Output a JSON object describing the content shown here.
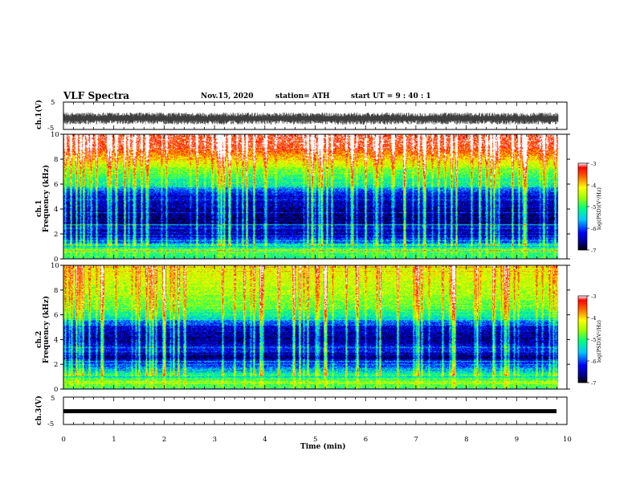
{
  "header": {
    "title": "VLF Spectra",
    "date": "Nov.15, 2020",
    "station": "station= ATH",
    "start": "start  UT =   9 : 40 : 1"
  },
  "chart_data": [
    {
      "type": "line",
      "panel": "ch1-waveform",
      "ylabel": "ch.1(V)",
      "ylim": [
        -5,
        5
      ],
      "yticks": [
        "5",
        "-5"
      ],
      "xlim": [
        0,
        10
      ],
      "series": [
        {
          "description_level": "noisy waveform centered near -1 V",
          "center": -1,
          "amplitude": 2.2,
          "x_end": 9.83
        }
      ]
    },
    {
      "type": "heatmap",
      "panel": "ch1-spectrogram",
      "ylabel": "ch.1\nFrequency (kHz)",
      "ylim": [
        0,
        10
      ],
      "yticks": [
        "0",
        "2",
        "4",
        "6",
        "8",
        "10"
      ],
      "xlim": [
        0,
        10
      ],
      "x_end": 9.83,
      "profile": [
        {
          "f": 0.0,
          "v": -5.4
        },
        {
          "f": 0.4,
          "v": -4.8
        },
        {
          "f": 0.8,
          "v": -5.1
        },
        {
          "f": 1.2,
          "v": -5.6
        },
        {
          "f": 1.6,
          "v": -6.1
        },
        {
          "f": 2.0,
          "v": -6.6
        },
        {
          "f": 2.4,
          "v": -6.2
        },
        {
          "f": 3.0,
          "v": -6.7
        },
        {
          "f": 4.0,
          "v": -6.6
        },
        {
          "f": 5.0,
          "v": -6.4
        },
        {
          "f": 5.6,
          "v": -5.8
        },
        {
          "f": 6.0,
          "v": -5.3
        },
        {
          "f": 7.0,
          "v": -4.8
        },
        {
          "f": 8.0,
          "v": -4.0
        },
        {
          "f": 9.0,
          "v": -3.4
        },
        {
          "f": 10.0,
          "v": -3.2
        }
      ],
      "colorbar": {
        "label": "log(PSD)(V²/Hz)",
        "range": [
          -7,
          -3
        ],
        "ticks": [
          "-3",
          "-4",
          "-5",
          "-6",
          "-7"
        ]
      }
    },
    {
      "type": "heatmap",
      "panel": "ch2-spectrogram",
      "ylabel": "ch.2\nFrequency (kHz)",
      "ylim": [
        0,
        10
      ],
      "yticks": [
        "0",
        "2",
        "4",
        "6",
        "8",
        "10"
      ],
      "xlim": [
        0,
        10
      ],
      "x_end": 9.83,
      "profile": [
        {
          "f": 0.0,
          "v": -5.2
        },
        {
          "f": 0.4,
          "v": -4.6
        },
        {
          "f": 0.8,
          "v": -5.0
        },
        {
          "f": 1.2,
          "v": -5.3
        },
        {
          "f": 1.6,
          "v": -5.6
        },
        {
          "f": 2.0,
          "v": -6.0
        },
        {
          "f": 2.5,
          "v": -6.8
        },
        {
          "f": 3.0,
          "v": -6.2
        },
        {
          "f": 4.0,
          "v": -6.6
        },
        {
          "f": 5.0,
          "v": -6.4
        },
        {
          "f": 5.6,
          "v": -5.6
        },
        {
          "f": 6.0,
          "v": -5.2
        },
        {
          "f": 7.0,
          "v": -4.7
        },
        {
          "f": 8.0,
          "v": -4.5
        },
        {
          "f": 9.0,
          "v": -4.3
        },
        {
          "f": 10.0,
          "v": -4.2
        }
      ],
      "colorbar": {
        "label": "log(PSD)(V²/Hz)",
        "range": [
          -7,
          -3
        ],
        "ticks": [
          "-3",
          "-4",
          "-5",
          "-6",
          "-7"
        ]
      }
    },
    {
      "type": "line",
      "panel": "ch3-waveform",
      "ylabel": "ch.3(V)",
      "ylim": [
        -5,
        5
      ],
      "yticks": [
        "5",
        "-5"
      ],
      "xlim": [
        0,
        10
      ],
      "series": [
        {
          "center": 0,
          "amplitude": 0.3,
          "x_end": 9.83
        }
      ]
    }
  ],
  "xaxis": {
    "label": "Time (min)",
    "ticks": [
      "0",
      "1",
      "2",
      "3",
      "4",
      "5",
      "6",
      "7",
      "8",
      "9",
      "10"
    ]
  },
  "colors": {
    "scale": [
      "#000080",
      "#0000ff",
      "#00a0ff",
      "#00ffff",
      "#00ff80",
      "#80ff00",
      "#ffff00",
      "#ff8000",
      "#ff0000"
    ]
  }
}
